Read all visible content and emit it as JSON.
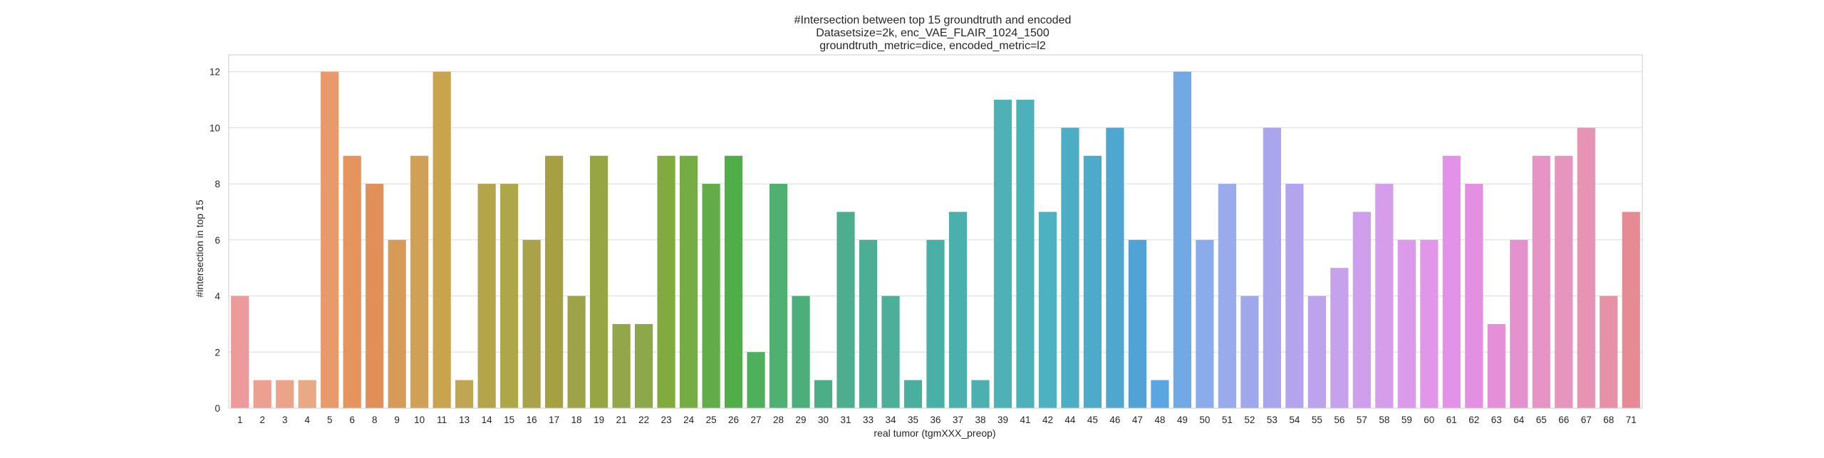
{
  "chart_data": {
    "type": "bar",
    "title_lines": [
      "#Intersection between top 15 groundtruth and encoded",
      "Datasetsize=2k, enc_VAE_FLAIR_1024_1500",
      "groundtruth_metric=dice, encoded_metric=l2"
    ],
    "xlabel": "real tumor (tgmXXX_preop)",
    "ylabel": "#intersection in top 15",
    "ylim": [
      0,
      12.6
    ],
    "yticks": [
      0,
      2,
      4,
      6,
      8,
      10,
      12
    ],
    "grid": true,
    "categories": [
      "1",
      "2",
      "3",
      "4",
      "5",
      "6",
      "8",
      "9",
      "10",
      "11",
      "13",
      "14",
      "15",
      "16",
      "17",
      "18",
      "19",
      "21",
      "22",
      "23",
      "24",
      "25",
      "26",
      "27",
      "28",
      "29",
      "30",
      "31",
      "33",
      "34",
      "35",
      "36",
      "37",
      "38",
      "39",
      "41",
      "42",
      "44",
      "45",
      "46",
      "47",
      "48",
      "49",
      "50",
      "51",
      "52",
      "53",
      "54",
      "55",
      "56",
      "57",
      "58",
      "59",
      "60",
      "61",
      "62",
      "63",
      "64",
      "65",
      "66",
      "67",
      "68",
      "71"
    ],
    "values": [
      4,
      1,
      1,
      1,
      12,
      9,
      8,
      6,
      9,
      12,
      1,
      8,
      8,
      6,
      9,
      4,
      9,
      3,
      3,
      9,
      9,
      8,
      9,
      2,
      8,
      4,
      1,
      7,
      6,
      4,
      1,
      6,
      7,
      1,
      11,
      11,
      7,
      10,
      9,
      10,
      6,
      1,
      12,
      6,
      8,
      4,
      10,
      8,
      4,
      5,
      7,
      8,
      6,
      6,
      9,
      8,
      3,
      6,
      9,
      9,
      10,
      4,
      7
    ],
    "colors": [
      "#ed9a9b",
      "#eca090",
      "#eba489",
      "#e9a985",
      "#e99a6d",
      "#e5945e",
      "#e1905a",
      "#d69b56",
      "#d1a057",
      "#c9a44d",
      "#c0a653",
      "#b4a54b",
      "#aea74a",
      "#aaa14b",
      "#a7a043",
      "#9fa348",
      "#97a545",
      "#93a74a",
      "#8da84b",
      "#82ab3f",
      "#75ad44",
      "#62ad4a",
      "#4fae47",
      "#4fb05c",
      "#4fb072",
      "#4caf7b",
      "#4cae86",
      "#4ead8e",
      "#4cae94",
      "#4caf9a",
      "#4bafa0",
      "#4aafa5",
      "#4bafab",
      "#4cb0b1",
      "#4db1b6",
      "#4db1b9",
      "#4db1bf",
      "#4caec4",
      "#4dabca",
      "#4fa7d0",
      "#51a3d6",
      "#5aa5e3",
      "#70a9e6",
      "#8aacea",
      "#9aabeb",
      "#a0a8ec",
      "#aaa6ed",
      "#b3a4ed",
      "#bda3ed",
      "#c6a1ed",
      "#cd9fec",
      "#d69deb",
      "#dc9aea",
      "#e196e9",
      "#e292e8",
      "#e38fe2",
      "#e48fd7",
      "#e591ce",
      "#e694c5",
      "#e696be",
      "#e693b4",
      "#e691a6",
      "#e68b95"
    ]
  }
}
